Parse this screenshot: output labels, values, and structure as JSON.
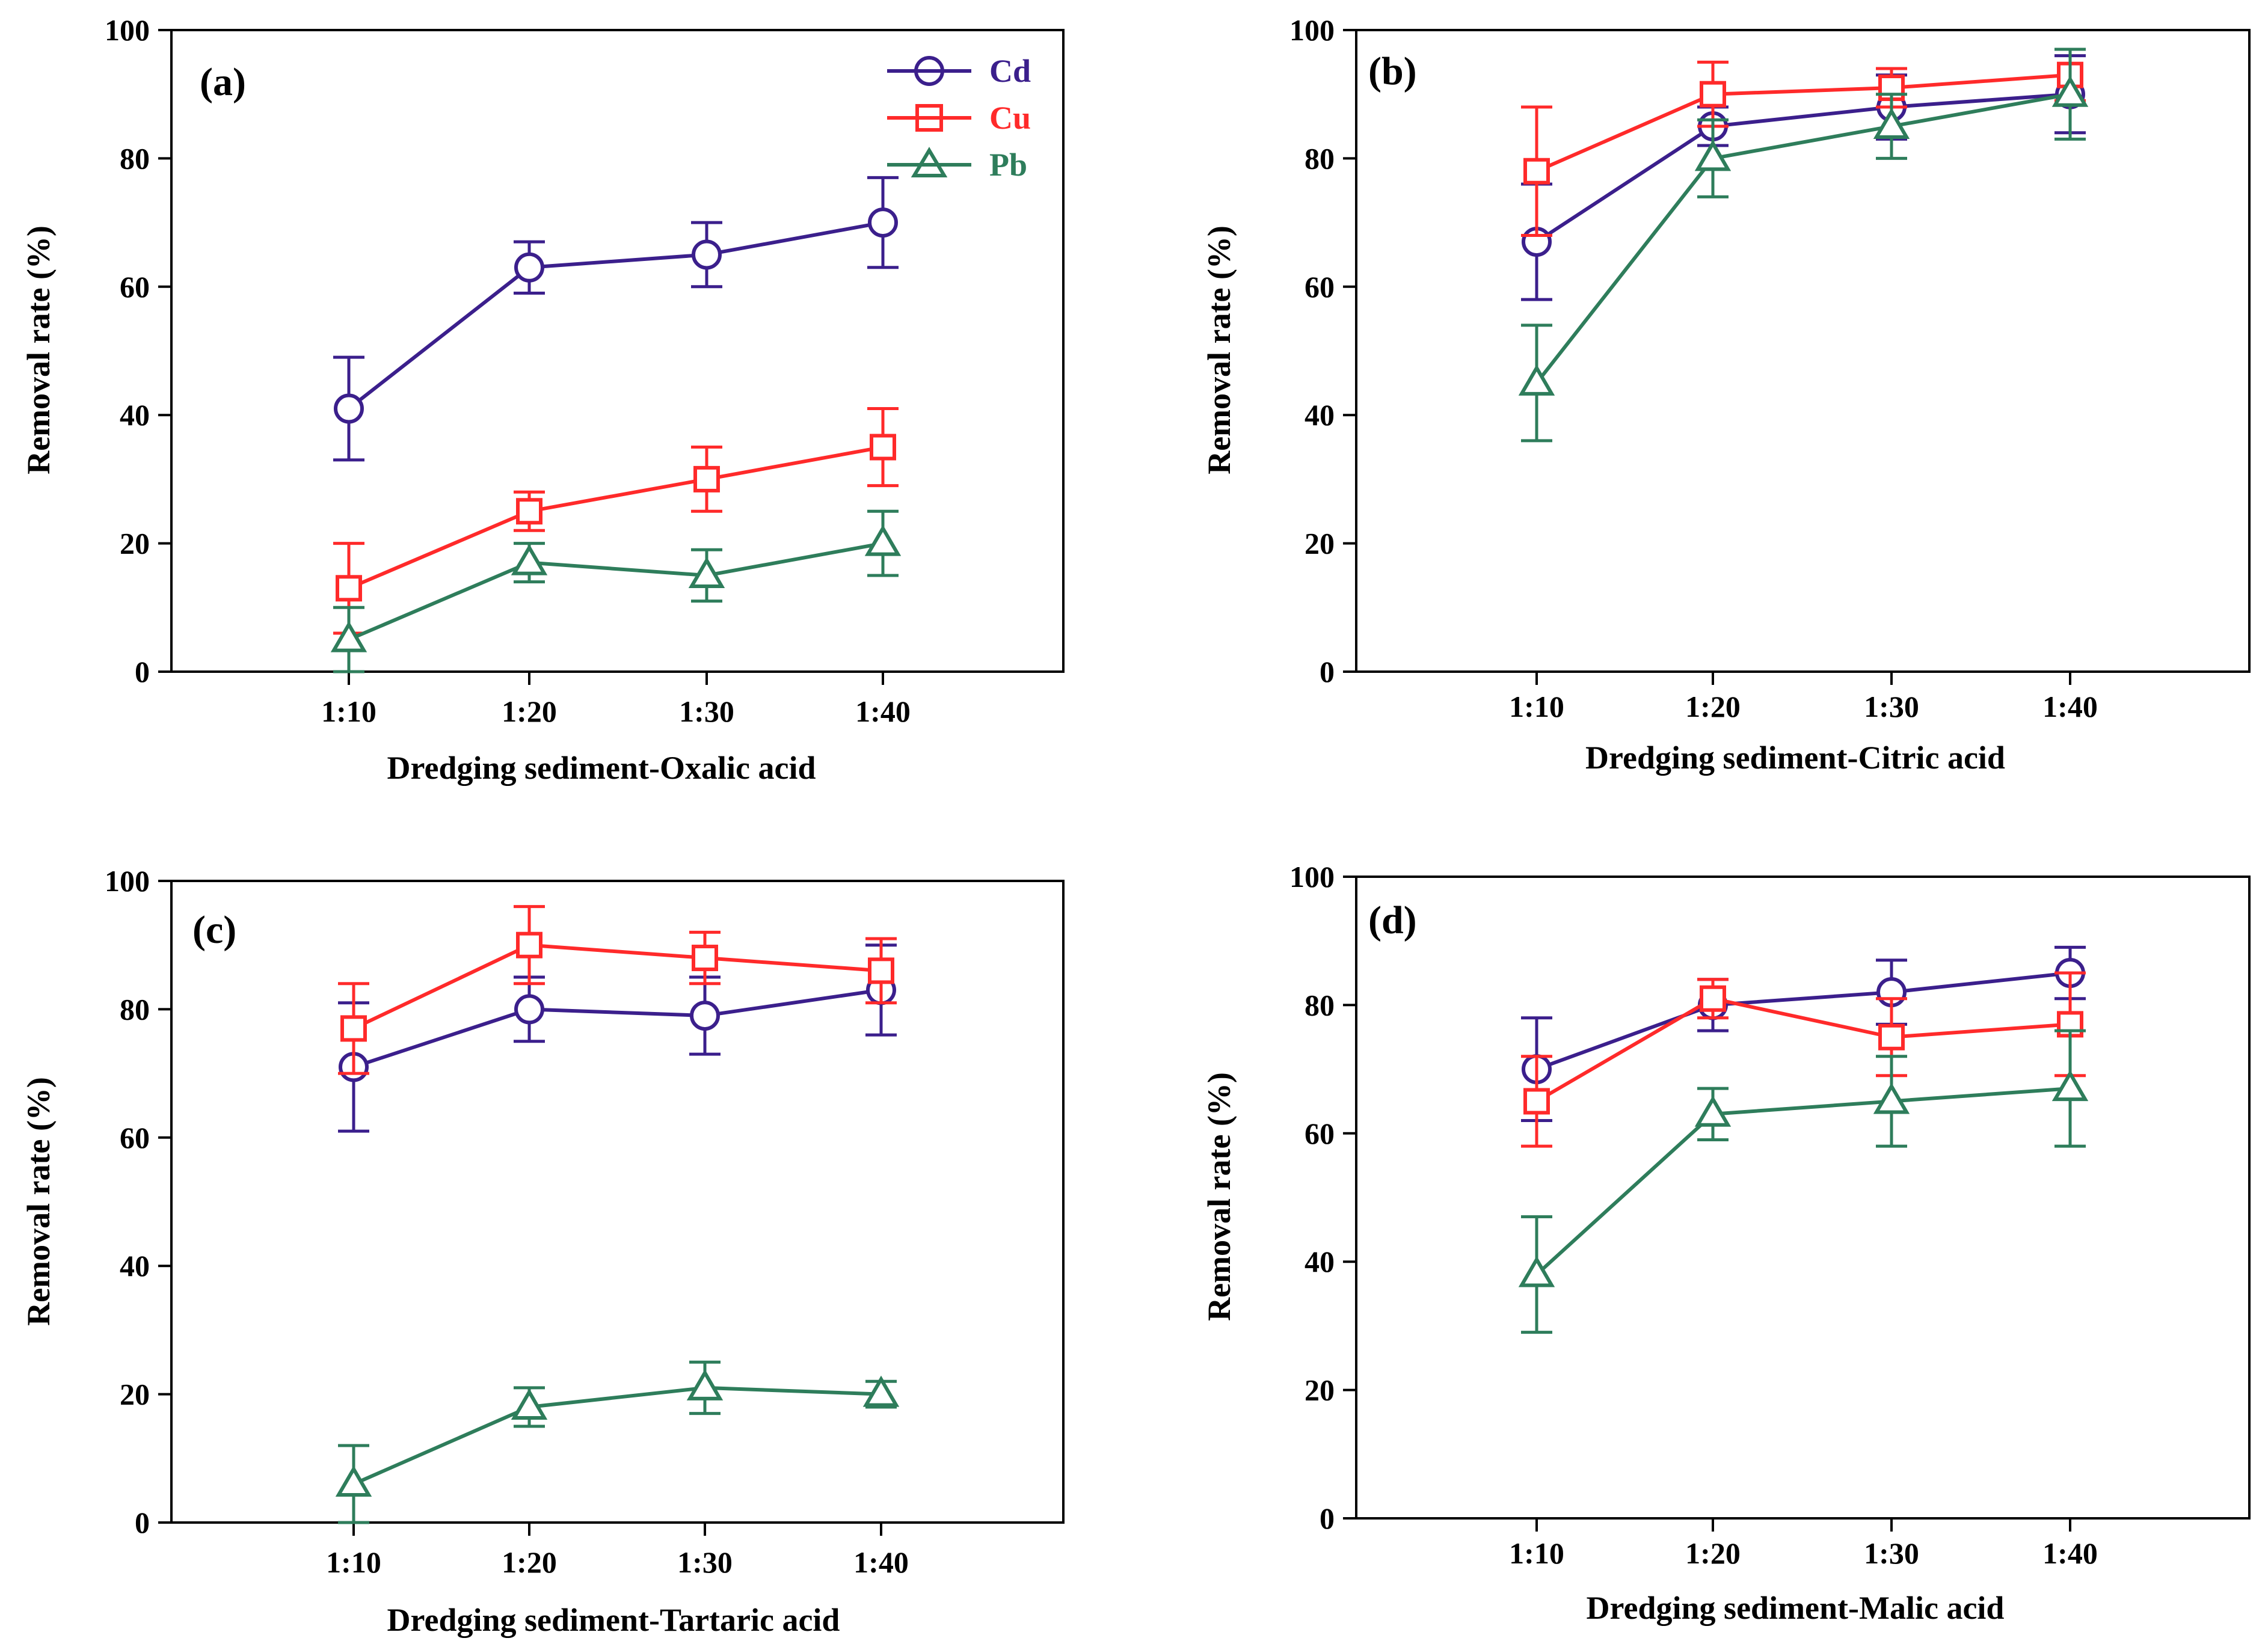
{
  "colors": {
    "Cd": "#3b1f8c",
    "Cu": "#ff2a2a",
    "Pb": "#2e7d5b"
  },
  "legend": [
    {
      "name": "Cd",
      "marker": "circle"
    },
    {
      "name": "Cu",
      "marker": "square"
    },
    {
      "name": "Pb",
      "marker": "triangle"
    }
  ],
  "chart_data": [
    {
      "type": "line",
      "panel": "(a)",
      "xlabel": "Dredging sediment-Oxalic acid",
      "ylabel": "Removal rate (%)",
      "categories": [
        "1:10",
        "1:20",
        "1:30",
        "1:40"
      ],
      "ylim": [
        0,
        100
      ],
      "yticks": [
        "0",
        "20",
        "40",
        "60",
        "80",
        "100"
      ],
      "series": [
        {
          "name": "Cd",
          "values": [
            41,
            63,
            65,
            70
          ],
          "errors": [
            8,
            4,
            5,
            7
          ]
        },
        {
          "name": "Cu",
          "values": [
            13,
            25,
            30,
            35
          ],
          "errors": [
            7,
            3,
            5,
            6
          ]
        },
        {
          "name": "Pb",
          "values": [
            5,
            17,
            15,
            20
          ],
          "errors": [
            5,
            3,
            4,
            5
          ]
        }
      ]
    },
    {
      "type": "line",
      "panel": "(b)",
      "xlabel": "Dredging sediment-Citric acid",
      "ylabel": "Removal rate (%)",
      "categories": [
        "1:10",
        "1:20",
        "1:30",
        "1:40"
      ],
      "ylim": [
        0,
        100
      ],
      "yticks": [
        "0",
        "20",
        "40",
        "60",
        "80",
        "100"
      ],
      "series": [
        {
          "name": "Cd",
          "values": [
            67,
            85,
            88,
            90
          ],
          "errors": [
            9,
            3,
            5,
            6
          ]
        },
        {
          "name": "Cu",
          "values": [
            78,
            90,
            91,
            93
          ],
          "errors": [
            10,
            5,
            3,
            4
          ]
        },
        {
          "name": "Pb",
          "values": [
            45,
            80,
            85,
            90
          ],
          "errors": [
            9,
            6,
            5,
            7
          ]
        }
      ]
    },
    {
      "type": "line",
      "panel": "(c)",
      "xlabel": "Dredging sediment-Tartaric acid",
      "ylabel": "Removal rate (%)",
      "categories": [
        "1:10",
        "1:20",
        "1:30",
        "1:40"
      ],
      "ylim": [
        0,
        100
      ],
      "yticks": [
        "0",
        "20",
        "40",
        "60",
        "80",
        "100"
      ],
      "series": [
        {
          "name": "Cd",
          "values": [
            71,
            80,
            79,
            83
          ],
          "errors": [
            10,
            5,
            6,
            7
          ]
        },
        {
          "name": "Cu",
          "values": [
            77,
            90,
            88,
            86
          ],
          "errors": [
            7,
            6,
            4,
            5
          ]
        },
        {
          "name": "Pb",
          "values": [
            6,
            18,
            21,
            20
          ],
          "errors": [
            6,
            3,
            4,
            2
          ]
        }
      ]
    },
    {
      "type": "line",
      "panel": "(d)",
      "xlabel": "Dredging sediment-Malic acid",
      "ylabel": "Removal rate (%)",
      "categories": [
        "1:10",
        "1:20",
        "1:30",
        "1:40"
      ],
      "ylim": [
        0,
        100
      ],
      "yticks": [
        "0",
        "20",
        "40",
        "60",
        "80",
        "100"
      ],
      "series": [
        {
          "name": "Cd",
          "values": [
            70,
            80,
            82,
            85
          ],
          "errors": [
            8,
            4,
            5,
            4
          ]
        },
        {
          "name": "Cu",
          "values": [
            65,
            81,
            75,
            77
          ],
          "errors": [
            7,
            3,
            6,
            8
          ]
        },
        {
          "name": "Pb",
          "values": [
            38,
            63,
            65,
            67
          ],
          "errors": [
            9,
            4,
            7,
            9
          ]
        }
      ]
    }
  ]
}
